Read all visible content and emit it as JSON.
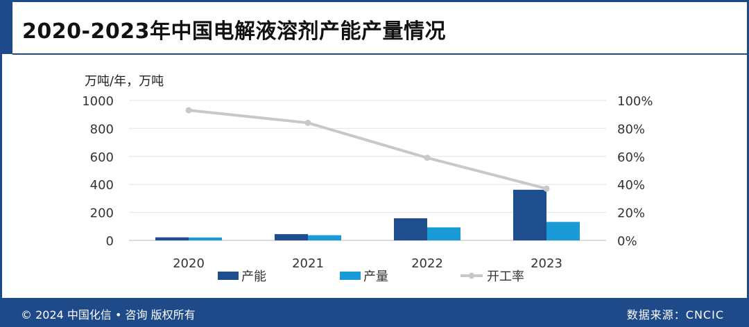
{
  "title": "2020-2023年中国电解液溶剂产能产量情况",
  "footer": {
    "copyright": "© 2024 中国化信 • 咨询  版权所有",
    "source": "数据来源：CNCIC"
  },
  "colors": {
    "brand": "#1f4a8a",
    "capacity": "#1f4e8f",
    "output": "#1a9ad6",
    "rate": "#c8c8c8"
  },
  "chart_data": {
    "type": "bar",
    "title": "2020-2023年中国电解液溶剂产能产量情况",
    "y_unit_label": "万吨/年，万吨",
    "categories": [
      "2020",
      "2021",
      "2022",
      "2023"
    ],
    "ylim": [
      0,
      1000
    ],
    "yticks": [
      0,
      200,
      400,
      600,
      800,
      1000
    ],
    "y2lim": [
      0,
      100
    ],
    "y2ticks": [
      "0%",
      "20%",
      "40%",
      "60%",
      "80%",
      "100%"
    ],
    "series": [
      {
        "name": "产能",
        "kind": "bar",
        "axis": "left",
        "values": [
          22,
          45,
          158,
          362
        ]
      },
      {
        "name": "产量",
        "kind": "bar",
        "axis": "left",
        "values": [
          21,
          37,
          93,
          132
        ]
      },
      {
        "name": "开工率",
        "kind": "line",
        "axis": "right",
        "values": [
          93,
          84,
          59,
          37
        ]
      }
    ],
    "grid": true,
    "legend": "bottom"
  }
}
